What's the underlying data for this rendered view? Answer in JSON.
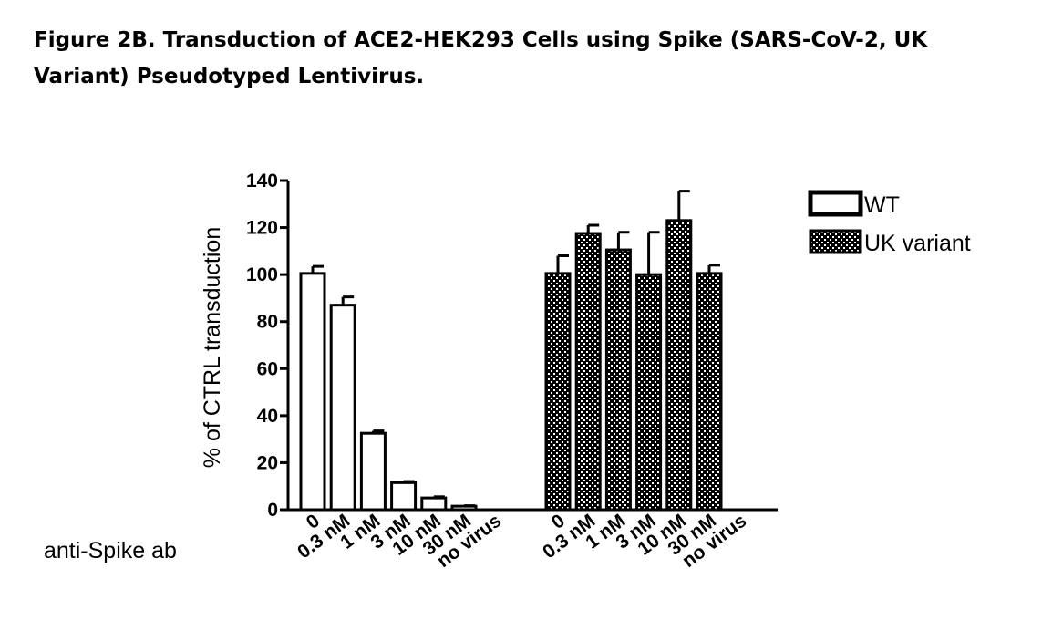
{
  "figure_title": "Figure 2B. Transduction of ACE2-HEK293 Cells using Spike (SARS-CoV-2, UK Variant) Pseudotyped Lentivirus.",
  "chart_data": {
    "type": "bar",
    "ylabel": "% of CTRL transduction",
    "xlabel": "anti-Spike ab",
    "ylim": [
      0,
      140
    ],
    "yticks": [
      0,
      20,
      40,
      60,
      80,
      100,
      120,
      140
    ],
    "categories": [
      "0",
      "0.3 nM",
      "1 nM",
      "3 nM",
      "10 nM",
      "30 nM",
      "no virus"
    ],
    "legend_position": "top-right",
    "series": [
      {
        "name": "WT",
        "pattern": "open",
        "values": [
          100.5,
          87,
          32.5,
          11.5,
          5,
          1.5,
          0
        ],
        "errors": [
          3,
          3.5,
          1,
          0.5,
          0.5,
          0.2,
          0
        ]
      },
      {
        "name": "UK variant",
        "pattern": "checkered",
        "values": [
          100.5,
          117.5,
          110.5,
          100,
          123,
          100.5,
          0
        ],
        "errors": [
          7.5,
          3.5,
          7.5,
          18,
          12.5,
          3.5,
          0
        ]
      }
    ],
    "colors": {
      "bar_stroke": "#000000",
      "open_fill": "#ffffff",
      "checker_dark": "#000000",
      "checker_light": "#ffffff"
    }
  }
}
